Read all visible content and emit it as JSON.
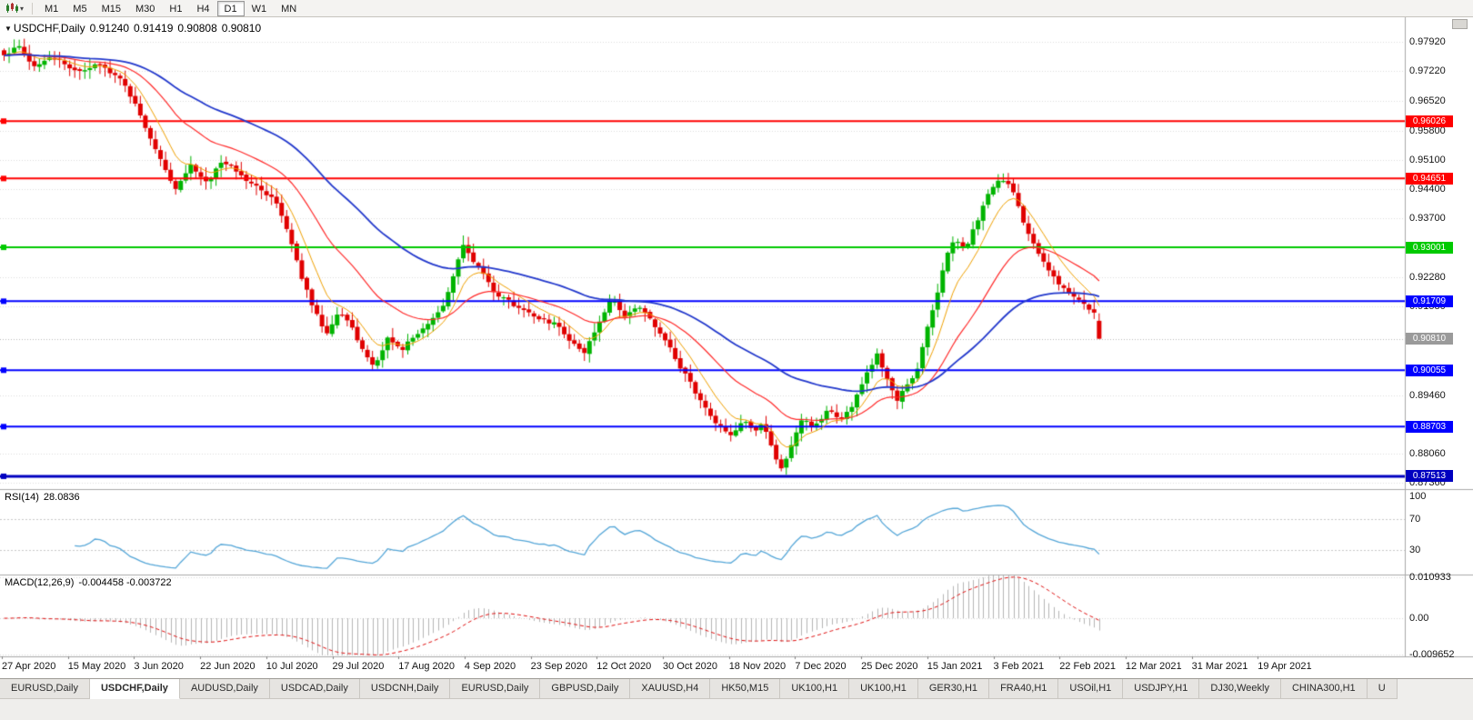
{
  "toolbar": {
    "timeframes": [
      "M1",
      "M5",
      "M15",
      "M30",
      "H1",
      "H4",
      "D1",
      "W1",
      "MN"
    ],
    "active_timeframe": "D1"
  },
  "chart": {
    "title": {
      "symbol_period": "USDCHF,Daily",
      "open": "0.91240",
      "high": "0.91419",
      "low": "0.90808",
      "close": "0.90810"
    },
    "price_axis_labels": [
      {
        "text": "0.97920",
        "value": 0.9792
      },
      {
        "text": "0.97220",
        "value": 0.9722
      },
      {
        "text": "0.96520",
        "value": 0.9652
      },
      {
        "text": "0.95800",
        "value": 0.958
      },
      {
        "text": "0.95100",
        "value": 0.951
      },
      {
        "text": "0.94400",
        "value": 0.944
      },
      {
        "text": "0.93700",
        "value": 0.937
      },
      {
        "text": "0.92280",
        "value": 0.9228
      },
      {
        "text": "0.91580",
        "value": 0.9158
      },
      {
        "text": "0.89460",
        "value": 0.8946
      },
      {
        "text": "0.88060",
        "value": 0.8806
      },
      {
        "text": "0.87360",
        "value": 0.8736
      }
    ],
    "date_axis_labels": [
      "27 Apr 2020",
      "15 May 2020",
      "3 Jun 2020",
      "22 Jun 2020",
      "10 Jul 2020",
      "29 Jul 2020",
      "17 Aug 2020",
      "4 Sep 2020",
      "23 Sep 2020",
      "12 Oct 2020",
      "30 Oct 2020",
      "18 Nov 2020",
      "7 Dec 2020",
      "25 Dec 2020",
      "15 Jan 2021",
      "3 Feb 2021",
      "22 Feb 2021",
      "12 Mar 2021",
      "31 Mar 2021",
      "19 Apr 2021"
    ],
    "current_price_tag": {
      "text": "0.90810",
      "value": 0.9081,
      "color": "#9a9a9a"
    }
  },
  "indicators": {
    "rsi": {
      "label": "RSI(14)",
      "value": "28.0836",
      "axis_labels": [
        {
          "text": "100",
          "value": 100
        },
        {
          "text": "70",
          "value": 70
        },
        {
          "text": "30",
          "value": 30
        }
      ],
      "levels": [
        70,
        30
      ],
      "line_color": "#54a6d8",
      "range": [
        0,
        108
      ]
    },
    "macd": {
      "label": "MACD(12,26,9)",
      "values": "-0.004458 -0.003722",
      "axis_labels": [
        {
          "text": "0.010933",
          "value": 0.010933
        },
        {
          "text": "0.00",
          "value": 0.0
        },
        {
          "text": "-0.009652",
          "value": -0.009652
        }
      ],
      "histogram_color": "#b5b5b5",
      "signal_color": "#e01010",
      "range": [
        -0.01,
        0.0115
      ]
    }
  },
  "chart_data": {
    "type": "candlestick",
    "symbol": "USDCHF",
    "period": "Daily",
    "candle_count": 218,
    "price_range": {
      "min": 0.8725,
      "max": 0.9845
    },
    "up_color": "#00b400",
    "down_color": "#e00000",
    "last_candle": {
      "o": 0.9124,
      "h": 0.91419,
      "l": 0.90808,
      "c": 0.9081
    },
    "price_path_anchors": [
      [
        0.0,
        0.9755
      ],
      [
        0.012,
        0.9782
      ],
      [
        0.025,
        0.9728
      ],
      [
        0.04,
        0.9748
      ],
      [
        0.058,
        0.9735
      ],
      [
        0.075,
        0.9722
      ],
      [
        0.09,
        0.9738
      ],
      [
        0.105,
        0.9705
      ],
      [
        0.118,
        0.9655
      ],
      [
        0.132,
        0.956
      ],
      [
        0.147,
        0.948
      ],
      [
        0.157,
        0.944
      ],
      [
        0.17,
        0.9498
      ],
      [
        0.185,
        0.9462
      ],
      [
        0.2,
        0.9505
      ],
      [
        0.215,
        0.9475
      ],
      [
        0.232,
        0.9442
      ],
      [
        0.248,
        0.9415
      ],
      [
        0.26,
        0.934
      ],
      [
        0.272,
        0.9225
      ],
      [
        0.283,
        0.9148
      ],
      [
        0.294,
        0.9095
      ],
      [
        0.306,
        0.916
      ],
      [
        0.318,
        0.9102
      ],
      [
        0.33,
        0.9038
      ],
      [
        0.338,
        0.901
      ],
      [
        0.35,
        0.9085
      ],
      [
        0.362,
        0.905
      ],
      [
        0.375,
        0.909
      ],
      [
        0.388,
        0.9125
      ],
      [
        0.4,
        0.9162
      ],
      [
        0.412,
        0.925
      ],
      [
        0.42,
        0.9305
      ],
      [
        0.432,
        0.926
      ],
      [
        0.445,
        0.9195
      ],
      [
        0.46,
        0.9168
      ],
      [
        0.475,
        0.915
      ],
      [
        0.49,
        0.9125
      ],
      [
        0.505,
        0.9115
      ],
      [
        0.518,
        0.908
      ],
      [
        0.53,
        0.9055
      ],
      [
        0.542,
        0.912
      ],
      [
        0.555,
        0.9172
      ],
      [
        0.568,
        0.9138
      ],
      [
        0.58,
        0.916
      ],
      [
        0.592,
        0.9115
      ],
      [
        0.605,
        0.9078
      ],
      [
        0.618,
        0.9015
      ],
      [
        0.63,
        0.896
      ],
      [
        0.642,
        0.8902
      ],
      [
        0.655,
        0.887
      ],
      [
        0.665,
        0.885
      ],
      [
        0.675,
        0.8895
      ],
      [
        0.685,
        0.8852
      ],
      [
        0.693,
        0.888
      ],
      [
        0.7,
        0.883
      ],
      [
        0.708,
        0.8765
      ],
      [
        0.716,
        0.8802
      ],
      [
        0.728,
        0.888
      ],
      [
        0.74,
        0.887
      ],
      [
        0.752,
        0.891
      ],
      [
        0.764,
        0.8886
      ],
      [
        0.776,
        0.8922
      ],
      [
        0.788,
        0.9002
      ],
      [
        0.797,
        0.9046
      ],
      [
        0.806,
        0.8985
      ],
      [
        0.815,
        0.8932
      ],
      [
        0.824,
        0.8965
      ],
      [
        0.833,
        0.9
      ],
      [
        0.842,
        0.9092
      ],
      [
        0.851,
        0.918
      ],
      [
        0.86,
        0.9282
      ],
      [
        0.869,
        0.932
      ],
      [
        0.878,
        0.9296
      ],
      [
        0.887,
        0.9352
      ],
      [
        0.896,
        0.9412
      ],
      [
        0.905,
        0.945
      ],
      [
        0.914,
        0.9462
      ],
      [
        0.922,
        0.9438
      ],
      [
        0.932,
        0.935
      ],
      [
        0.945,
        0.9292
      ],
      [
        0.958,
        0.9235
      ],
      [
        0.972,
        0.9188
      ],
      [
        0.985,
        0.9162
      ],
      [
        1.0,
        0.913
      ]
    ],
    "moving_averages": [
      {
        "name": "fast",
        "period": 8,
        "color": "#f0a000",
        "width": 1
      },
      {
        "name": "medium",
        "period": 24,
        "color": "#ff2a2a",
        "width": 1.2
      },
      {
        "name": "slow",
        "period": 55,
        "color": "#2238cc",
        "width": 1.8
      }
    ],
    "horizontal_lines": [
      {
        "label": "0.96026",
        "value": 0.96026,
        "color": "#ff0000",
        "thickness": 2
      },
      {
        "label": "0.94651",
        "value": 0.94651,
        "color": "#ff0000",
        "thickness": 2
      },
      {
        "label": "0.93001",
        "value": 0.93001,
        "color": "#00ca00",
        "thickness": 2
      },
      {
        "label": "0.91709",
        "value": 0.91709,
        "color": "#0000ff",
        "thickness": 2
      },
      {
        "label": "0.90055",
        "value": 0.90055,
        "color": "#0000ff",
        "thickness": 2
      },
      {
        "label": "0.88703",
        "value": 0.88703,
        "color": "#0000ff",
        "thickness": 2
      },
      {
        "label": "0.87513",
        "value": 0.87513,
        "color": "#0000c0",
        "thickness": 3
      }
    ]
  },
  "tabs": [
    {
      "label": "EURUSD,Daily",
      "active": false
    },
    {
      "label": "USDCHF,Daily",
      "active": true
    },
    {
      "label": "AUDUSD,Daily",
      "active": false
    },
    {
      "label": "USDCAD,Daily",
      "active": false
    },
    {
      "label": "USDCNH,Daily",
      "active": false
    },
    {
      "label": "EURUSD,Daily",
      "active": false
    },
    {
      "label": "GBPUSD,Daily",
      "active": false
    },
    {
      "label": "XAUUSD,H4",
      "active": false
    },
    {
      "label": "HK50,M15",
      "active": false
    },
    {
      "label": "UK100,H1",
      "active": false
    },
    {
      "label": "UK100,H1",
      "active": false
    },
    {
      "label": "GER30,H1",
      "active": false
    },
    {
      "label": "FRA40,H1",
      "active": false
    },
    {
      "label": "USOil,H1",
      "active": false
    },
    {
      "label": "USDJPY,H1",
      "active": false
    },
    {
      "label": "DJ30,Weekly",
      "active": false
    },
    {
      "label": "CHINA300,H1",
      "active": false
    },
    {
      "label": "U",
      "active": false
    }
  ]
}
